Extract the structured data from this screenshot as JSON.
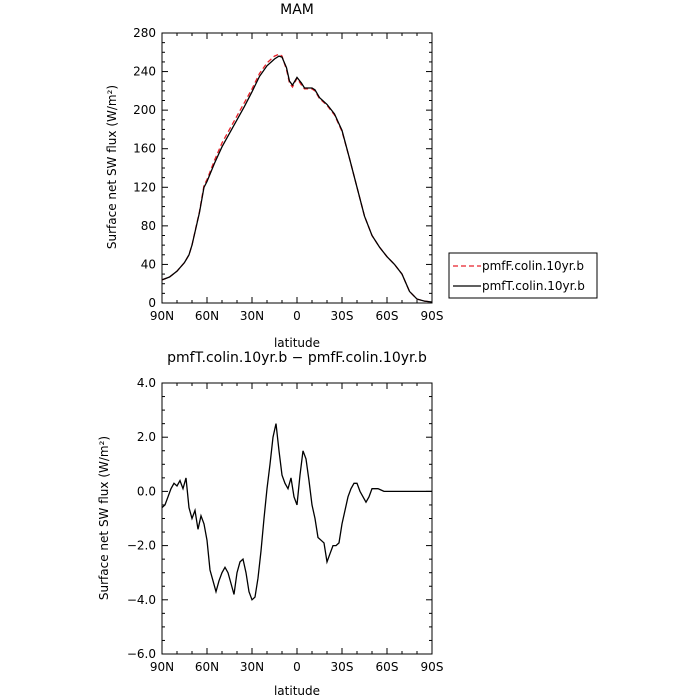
{
  "chart_data": [
    {
      "type": "line",
      "title": "MAM",
      "xlabel": "latitude",
      "ylabel": "Surface net SW flux (W/m²)",
      "ylim": [
        0,
        280
      ],
      "yticks": [
        0,
        40,
        80,
        120,
        160,
        200,
        240,
        280
      ],
      "xlim": [
        90,
        -90
      ],
      "xticks": [
        90,
        60,
        30,
        0,
        -30,
        -60,
        -90
      ],
      "xtick_labels": [
        "90N",
        "60N",
        "30N",
        "0",
        "30S",
        "60S",
        "90S"
      ],
      "grid": false,
      "legend_position": "right",
      "series": [
        {
          "name": "pmfF.colin.10yr.b",
          "color": "#e8212a",
          "style": "dashed",
          "x": [
            90,
            85,
            80,
            75,
            72,
            70,
            65,
            62,
            60,
            55,
            50,
            45,
            40,
            35,
            30,
            25,
            20,
            15,
            12,
            10,
            7,
            5,
            3,
            0,
            -3,
            -5,
            -8,
            -10,
            -12,
            -15,
            -20,
            -25,
            -30,
            -35,
            -40,
            -45,
            -50,
            -55,
            -60,
            -65,
            -70,
            -75,
            -80,
            -85,
            -90
          ],
          "y": [
            24,
            27,
            33,
            42,
            50,
            60,
            95,
            122,
            128,
            148,
            166,
            180,
            194,
            208,
            222,
            238,
            249,
            256,
            258,
            256,
            242,
            228,
            224,
            233,
            226,
            222,
            222,
            222,
            220,
            212,
            205,
            195,
            178,
            150,
            120,
            90,
            70,
            58,
            48,
            40,
            30,
            12,
            4,
            2,
            1
          ]
        },
        {
          "name": "pmfT.colin.10yr.b",
          "color": "#000000",
          "style": "solid",
          "x": [
            90,
            85,
            80,
            75,
            72,
            70,
            65,
            62,
            60,
            55,
            50,
            45,
            40,
            35,
            30,
            25,
            20,
            15,
            12,
            10,
            7,
            5,
            3,
            0,
            -3,
            -5,
            -8,
            -10,
            -12,
            -15,
            -20,
            -25,
            -30,
            -35,
            -40,
            -45,
            -50,
            -55,
            -60,
            -65,
            -70,
            -75,
            -80,
            -85,
            -90
          ],
          "y": [
            24,
            27,
            33,
            42,
            50,
            60,
            94,
            120,
            126,
            145,
            162,
            176,
            190,
            204,
            219,
            235,
            246,
            253,
            256,
            255,
            244,
            230,
            226,
            234,
            228,
            223,
            223,
            223,
            221,
            213,
            206,
            196,
            179,
            150,
            120,
            90,
            70,
            58,
            48,
            40,
            30,
            12,
            4,
            2,
            1
          ]
        }
      ]
    },
    {
      "type": "line",
      "title": "pmfT.colin.10yr.b − pmfF.colin.10yr.b",
      "xlabel": "latitude",
      "ylabel": "Surface net SW flux (W/m²)",
      "ylim": [
        -6,
        4
      ],
      "yticks": [
        -6,
        -4,
        -2,
        0,
        2,
        4
      ],
      "ytick_labels": [
        "−6.0",
        "−4.0",
        "−2.0",
        "0.0",
        "2.0",
        "4.0"
      ],
      "xlim": [
        90,
        -90
      ],
      "xticks": [
        90,
        60,
        30,
        0,
        -30,
        -60,
        -90
      ],
      "xtick_labels": [
        "90N",
        "60N",
        "30N",
        "0",
        "30S",
        "60S",
        "90S"
      ],
      "grid": false,
      "series": [
        {
          "color": "#000000",
          "style": "solid",
          "x": [
            90,
            88,
            86,
            84,
            82,
            80,
            78,
            76,
            74,
            72,
            70,
            68,
            66,
            64,
            62,
            60,
            58,
            56,
            54,
            52,
            50,
            48,
            46,
            44,
            42,
            40,
            38,
            36,
            34,
            32,
            30,
            28,
            26,
            24,
            22,
            20,
            18,
            16,
            14,
            12,
            10,
            8,
            6,
            4,
            2,
            0,
            -2,
            -4,
            -6,
            -8,
            -10,
            -12,
            -14,
            -16,
            -18,
            -20,
            -22,
            -24,
            -26,
            -28,
            -30,
            -32,
            -34,
            -36,
            -38,
            -40,
            -42,
            -44,
            -46,
            -48,
            -50,
            -52,
            -54,
            -56,
            -58,
            -60,
            -62,
            -64,
            -66,
            -68,
            -70,
            -72,
            -74,
            -76,
            -78,
            -80,
            -82,
            -84,
            -86,
            -88,
            -90
          ],
          "y": [
            -0.6,
            -0.5,
            -0.2,
            0.1,
            0.3,
            0.2,
            0.4,
            0.1,
            0.5,
            -0.6,
            -1.0,
            -0.7,
            -1.4,
            -0.9,
            -1.2,
            -1.8,
            -2.9,
            -3.3,
            -3.7,
            -3.3,
            -3.0,
            -2.8,
            -3.0,
            -3.4,
            -3.8,
            -3.0,
            -2.6,
            -2.5,
            -3.0,
            -3.7,
            -4.0,
            -3.9,
            -3.2,
            -2.2,
            -1.0,
            0.1,
            1.0,
            2.0,
            2.5,
            1.5,
            0.6,
            0.3,
            0.1,
            0.5,
            -0.2,
            -0.5,
            0.6,
            1.5,
            1.2,
            0.4,
            -0.5,
            -1.0,
            -1.7,
            -1.8,
            -1.9,
            -2.6,
            -2.3,
            -2.0,
            -2.0,
            -1.9,
            -1.2,
            -0.7,
            -0.2,
            0.1,
            0.3,
            0.3,
            0.0,
            -0.2,
            -0.4,
            -0.2,
            0.1,
            0.1,
            0.1,
            0.05,
            0.0,
            0.0,
            0.0,
            0.0,
            0.0,
            0.0,
            0.0,
            0.0,
            0.0,
            0.0,
            0.0,
            0.0,
            0.0,
            0.0,
            0.0,
            0.0,
            0.0
          ]
        }
      ]
    }
  ]
}
